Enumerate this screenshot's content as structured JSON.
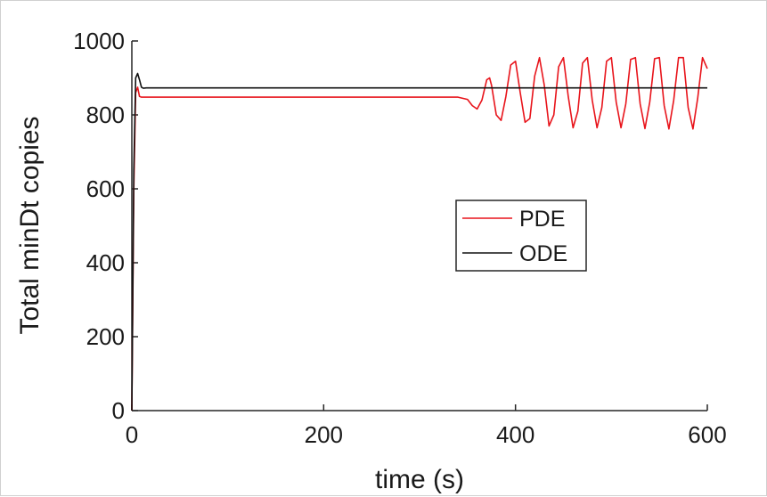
{
  "chart_data": {
    "type": "line",
    "xlabel": "time (s)",
    "ylabel": "Total minDt copies",
    "xlim": [
      0,
      600
    ],
    "ylim": [
      0,
      1000
    ],
    "xticks": [
      0,
      200,
      400,
      600
    ],
    "yticks": [
      0,
      200,
      400,
      600,
      800,
      1000
    ],
    "xtick_labels": [
      "0",
      "200",
      "400",
      "600"
    ],
    "ytick_labels": [
      "0",
      "200",
      "400",
      "600",
      "800",
      "1000"
    ],
    "grid": false,
    "legend_position": "center-right",
    "series": [
      {
        "name": "PDE",
        "color": "#e8141b",
        "x": [
          0,
          2,
          4,
          6,
          8,
          10,
          15,
          30,
          100,
          200,
          300,
          340,
          350,
          355,
          360,
          365,
          370,
          373,
          375,
          380,
          385,
          390,
          395,
          400,
          405,
          410,
          415,
          420,
          425,
          430,
          435,
          440,
          445,
          450,
          455,
          460,
          465,
          470,
          475,
          480,
          485,
          490,
          495,
          500,
          505,
          510,
          515,
          520,
          525,
          530,
          535,
          540,
          545,
          550,
          555,
          560,
          565,
          570,
          575,
          580,
          585,
          590,
          595,
          600
        ],
        "values": [
          0,
          600,
          860,
          875,
          850,
          848,
          848,
          848,
          848,
          848,
          848,
          848,
          842,
          825,
          816,
          840,
          895,
          900,
          880,
          800,
          785,
          850,
          935,
          945,
          860,
          780,
          790,
          905,
          955,
          880,
          770,
          800,
          930,
          955,
          850,
          765,
          810,
          940,
          955,
          840,
          765,
          820,
          945,
          955,
          835,
          765,
          830,
          950,
          955,
          830,
          763,
          835,
          952,
          955,
          825,
          762,
          840,
          955,
          955,
          820,
          762,
          845,
          955,
          925
        ]
      },
      {
        "name": "ODE",
        "color": "#111111",
        "x": [
          0,
          2,
          4,
          6,
          8,
          10,
          12,
          15,
          20,
          600
        ],
        "values": [
          0,
          650,
          900,
          912,
          895,
          875,
          872,
          873,
          873,
          873
        ]
      }
    ]
  }
}
